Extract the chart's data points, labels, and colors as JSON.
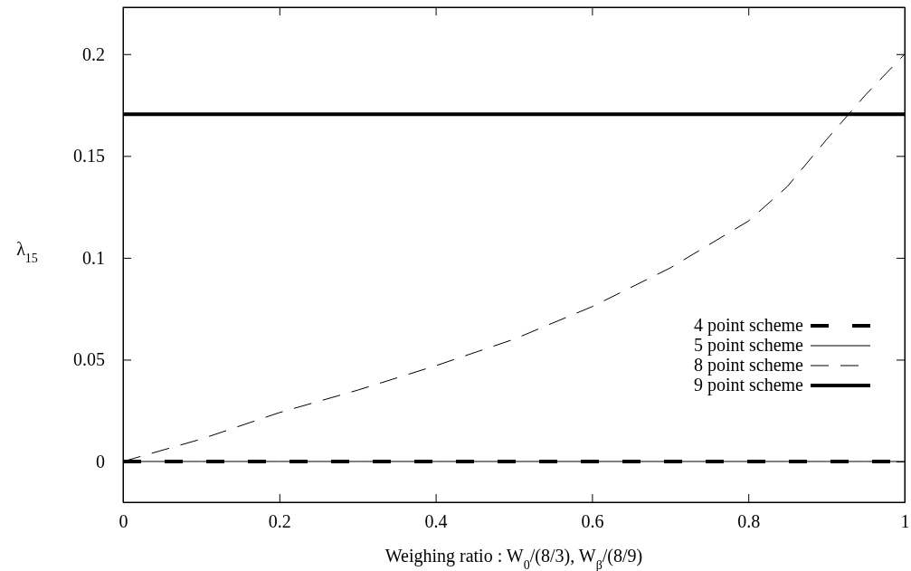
{
  "chart_data": {
    "type": "line",
    "xlabel": "Weighing ratio : W$_{0}$/(8/3), W$_{β}$/(8/9)",
    "ylabel": "λ$_{15}$",
    "xlim": [
      0,
      1
    ],
    "ylim": [
      -0.02,
      0.223
    ],
    "xticks": [
      0,
      0.2,
      0.4,
      0.6,
      0.8,
      1
    ],
    "yticks": [
      0,
      0.05,
      0.1,
      0.15,
      0.2
    ],
    "x": [
      0,
      0.1,
      0.2,
      0.3,
      0.4,
      0.5,
      0.6,
      0.7,
      0.8,
      0.85,
      0.9,
      0.95,
      1
    ],
    "legend": "bottom right",
    "grid": false,
    "marker": "none",
    "series": [
      {
        "name": "4 point scheme",
        "color": "#000000",
        "line_style": "dashed",
        "values": [
          0,
          0,
          0,
          0,
          0,
          0,
          0,
          0,
          0,
          0,
          0,
          0,
          0
        ]
      },
      {
        "name": "5 point scheme",
        "color": "#000000",
        "line_style": "solid",
        "values": [
          0,
          0,
          0,
          0,
          0,
          0,
          0,
          0,
          0,
          0,
          0,
          0,
          0
        ]
      },
      {
        "name": "8 point scheme",
        "color": "#000000",
        "line_style": "dashed",
        "values": [
          0,
          0.011,
          0.024,
          0.035,
          0.047,
          0.06,
          0.076,
          0.095,
          0.118,
          0.135,
          0.158,
          0.18,
          0.2
        ]
      },
      {
        "name": "9 point scheme",
        "color": "#000000",
        "line_style": "solid",
        "values": [
          0.1705,
          0.1705,
          0.1705,
          0.1705,
          0.1705,
          0.1705,
          0.1705,
          0.1705,
          0.1705,
          0.1705,
          0.1705,
          0.1705,
          0.1705
        ]
      }
    ]
  }
}
